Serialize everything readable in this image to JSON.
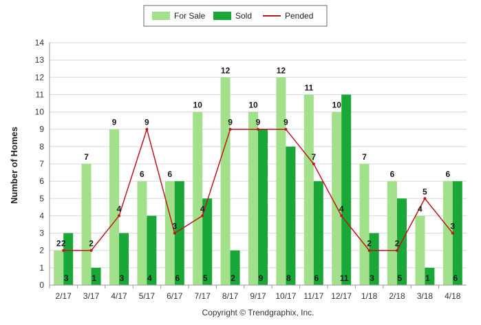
{
  "chart_data": {
    "type": "bar",
    "title": "",
    "xlabel": "",
    "ylabel": "Number of Homes",
    "ylim": [
      0,
      14
    ],
    "yticks": [
      0,
      1,
      2,
      3,
      4,
      5,
      6,
      7,
      8,
      9,
      10,
      11,
      12,
      13,
      14
    ],
    "grid": true,
    "legend_position": "top-center",
    "categories": [
      "2/17",
      "3/17",
      "4/17",
      "5/17",
      "6/17",
      "7/17",
      "8/17",
      "9/17",
      "10/17",
      "11/17",
      "12/17",
      "1/18",
      "2/18",
      "3/18",
      "4/18"
    ],
    "series": [
      {
        "name": "For Sale",
        "type": "bar",
        "color": "#a3e08c",
        "values": [
          2,
          7,
          9,
          6,
          6,
          10,
          12,
          10,
          12,
          11,
          10,
          7,
          6,
          4,
          6
        ]
      },
      {
        "name": "Sold",
        "type": "bar",
        "color": "#19a838",
        "values": [
          3,
          1,
          3,
          4,
          6,
          5,
          2,
          9,
          8,
          6,
          11,
          3,
          5,
          1,
          6
        ]
      },
      {
        "name": "Pended",
        "type": "line",
        "color": "#c0141c",
        "values": [
          2,
          2,
          4,
          9,
          3,
          4,
          9,
          9,
          9,
          7,
          4,
          2,
          2,
          5,
          3
        ]
      }
    ]
  },
  "copyright": "Copyright © Trendgraphix, Inc."
}
